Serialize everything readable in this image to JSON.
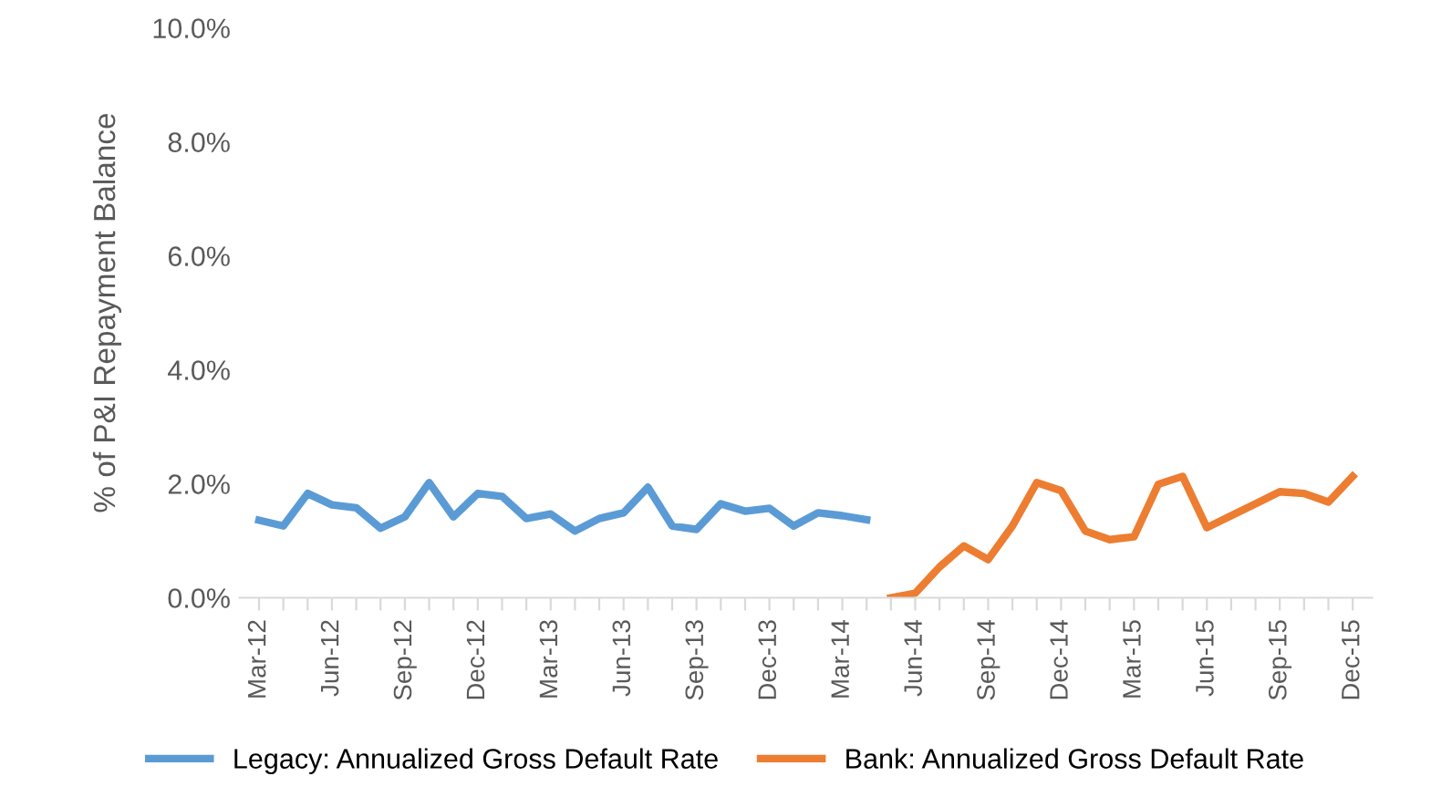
{
  "chart_data": {
    "type": "line",
    "ylabel": "% of P&I Repayment Balance",
    "categories": [
      "Mar-12",
      null,
      null,
      "Jun-12",
      null,
      null,
      "Sep-12",
      null,
      null,
      "Dec-12",
      null,
      null,
      "Mar-13",
      null,
      null,
      "Jun-13",
      null,
      null,
      "Sep-13",
      null,
      null,
      "Dec-13",
      null,
      null,
      "Mar-14",
      null,
      null,
      "Jun-14",
      null,
      null,
      "Sep-14",
      null,
      null,
      "Dec-14",
      null,
      null,
      "Mar-15",
      null,
      null,
      "Jun-15",
      null,
      null,
      "Sep-15",
      null,
      null,
      "Dec-15"
    ],
    "series": [
      {
        "name": "Legacy: Annualized Gross Default Rate",
        "color": "#5b9bd5",
        "values": [
          1.36,
          1.26,
          1.83,
          1.63,
          1.58,
          1.22,
          1.42,
          2.02,
          1.42,
          1.83,
          1.78,
          1.39,
          1.47,
          1.17,
          1.39,
          1.49,
          1.94,
          1.26,
          1.2,
          1.65,
          1.52,
          1.57,
          1.26,
          1.49,
          1.44,
          1.37,
          null,
          null,
          null,
          null,
          null,
          null,
          null,
          null,
          null,
          null,
          null,
          null,
          null,
          null,
          null,
          null,
          null,
          null,
          null,
          null
        ]
      },
      {
        "name": "Bank: Annualized Gross Default Rate",
        "color": "#ed7d31",
        "values": [
          null,
          null,
          null,
          null,
          null,
          null,
          null,
          null,
          null,
          null,
          null,
          null,
          null,
          null,
          null,
          null,
          null,
          null,
          null,
          null,
          null,
          null,
          null,
          null,
          null,
          null,
          0.0,
          0.08,
          0.54,
          0.91,
          0.67,
          1.26,
          2.02,
          1.88,
          1.17,
          1.02,
          1.07,
          1.99,
          2.13,
          1.23,
          1.44,
          1.65,
          1.86,
          1.83,
          1.68,
          2.13
        ]
      }
    ],
    "ylim": [
      0,
      10
    ],
    "yticks": [
      {
        "value": 0,
        "label": "0.0%"
      },
      {
        "value": 2,
        "label": "2.0%"
      },
      {
        "value": 4,
        "label": "4.0%"
      },
      {
        "value": 6,
        "label": "6.0%"
      },
      {
        "value": 8,
        "label": "8.0%"
      },
      {
        "value": 10,
        "label": "10.0%"
      }
    ],
    "grid": false,
    "legend": "bottom",
    "marker": "none",
    "line_style": "solid"
  }
}
